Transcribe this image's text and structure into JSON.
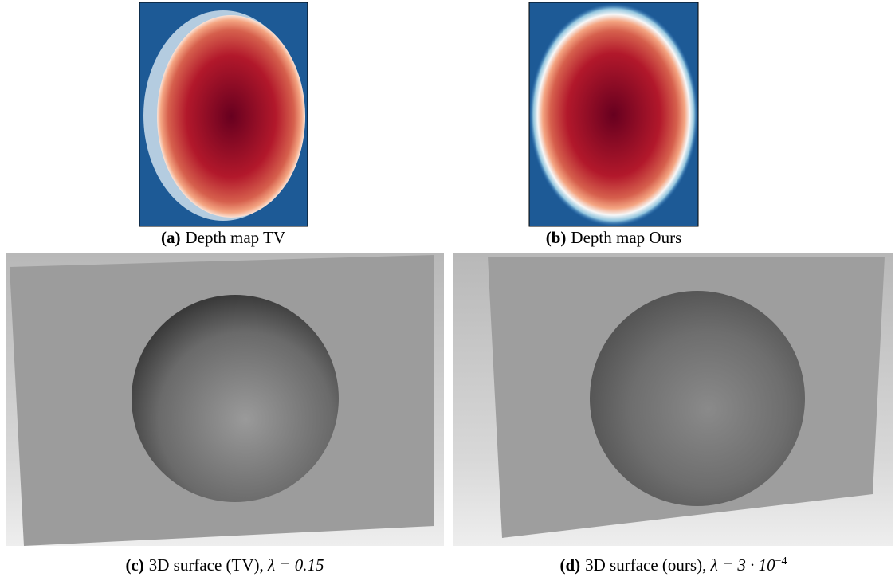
{
  "panels": [
    {
      "label": "(a)",
      "caption": "Depth map TV"
    },
    {
      "label": "(b)",
      "caption": "Depth map Ours"
    },
    {
      "label": "(c)",
      "caption": "3D surface (TV), ",
      "math": "λ = 0.15"
    },
    {
      "label": "(d)",
      "caption": "3D surface (ours), ",
      "math": "λ = 3 · 10",
      "sup": "−4"
    }
  ]
}
